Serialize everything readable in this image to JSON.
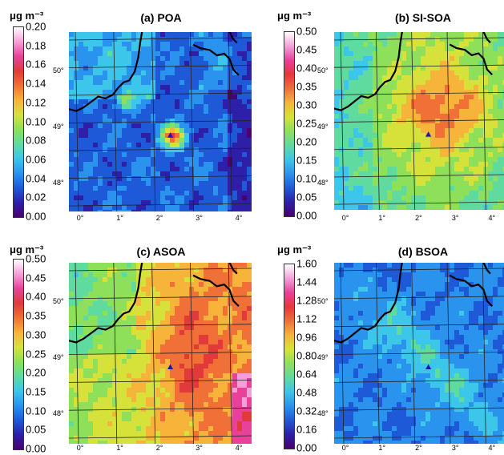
{
  "panels": [
    {
      "title": "(a) POA",
      "unit": "μg m⁻³",
      "colorbar": [
        "0.20",
        "0.18",
        "0.16",
        "0.14",
        "0.12",
        "0.10",
        "0.08",
        "0.06",
        "0.04",
        "0.02",
        "0.00"
      ],
      "value_range": [
        0.0,
        0.2
      ],
      "scene": "poa"
    },
    {
      "title": "(b) SI-SOA",
      "unit": "μg m⁻³",
      "colorbar": [
        "0.50",
        "0.45",
        "0.40",
        "0.35",
        "0.30",
        "0.25",
        "0.20",
        "0.15",
        "0.10",
        "0.05",
        "0.00"
      ],
      "value_range": [
        0.0,
        0.5
      ],
      "scene": "sisoa"
    },
    {
      "title": "(c) ASOA",
      "unit": "μg m⁻³",
      "colorbar": [
        "0.50",
        "0.45",
        "0.40",
        "0.35",
        "0.30",
        "0.25",
        "0.20",
        "0.15",
        "0.10",
        "0.05",
        "0.00"
      ],
      "value_range": [
        0.0,
        0.5
      ],
      "scene": "asoa"
    },
    {
      "title": "(d) BSOA",
      "unit": "μg m⁻³",
      "colorbar": [
        "1.60",
        "1.44",
        "1.28",
        "1.12",
        "0.96",
        "0.80",
        "0.64",
        "0.48",
        "0.32",
        "0.16",
        "0.00"
      ],
      "value_range": [
        0.0,
        1.6
      ],
      "scene": "bsoa"
    }
  ],
  "lon_labels": [
    "0°",
    "1°",
    "2°",
    "3°",
    "4°"
  ],
  "lat_labels": [
    "50°",
    "49°",
    "48°"
  ],
  "palette": [
    "#4a0070",
    "#2d1fa8",
    "#1e5ad8",
    "#2a93ee",
    "#3cc6ea",
    "#5fdba0",
    "#8ee05a",
    "#d6e23a",
    "#f7b43a",
    "#f07038",
    "#e23a3a",
    "#e8419a",
    "#f4a0d8",
    "#ffffff"
  ],
  "site_marker": "triangle-icon"
}
